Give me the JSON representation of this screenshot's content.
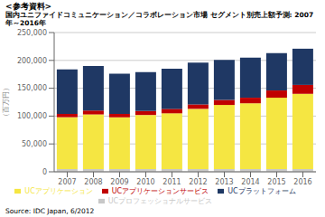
{
  "chart_data": {
    "type": "bar",
    "stacked": true,
    "title": "<参考資料>",
    "subtitle": "国内ユニファイドコミュニケーション／コラボレーション市場 セグメント別売上額予測: 2007年～2016年",
    "categories": [
      "2007",
      "2008",
      "2009",
      "2010",
      "2011",
      "2012",
      "2013",
      "2014",
      "2015",
      "2016"
    ],
    "series": [
      {
        "name": "UCプロフェッショナルサービス",
        "color": "#c8c8c8",
        "values": [
          5000,
          5000,
          5000,
          5000,
          5000,
          5000,
          5000,
          5000,
          5000,
          5000
        ]
      },
      {
        "name": "UCアプリケーション",
        "color": "#f5e642",
        "values": [
          93000,
          98000,
          93000,
          97000,
          100000,
          108000,
          115000,
          118000,
          128000,
          135000
        ]
      },
      {
        "name": "UCアプリケーションサービス",
        "color": "#c00000",
        "values": [
          6000,
          7000,
          6000,
          7000,
          8000,
          8000,
          9000,
          10000,
          13000,
          16000
        ]
      },
      {
        "name": "UCプラットフォーム",
        "color": "#1f3864",
        "values": [
          80000,
          80000,
          72000,
          70000,
          72000,
          75000,
          72000,
          72000,
          67000,
          65000
        ]
      }
    ],
    "ylabel": "（百万円）",
    "ylim": [
      0,
      250000
    ],
    "yticks": [
      0,
      {
        "value": 50000,
        "label": "50,000"
      },
      {
        "value": 100000,
        "label": "100,000"
      },
      {
        "value": 150000,
        "label": "150,000"
      },
      {
        "value": 200000,
        "label": "200,000"
      },
      {
        "value": 250000,
        "label": "250,000"
      }
    ],
    "grid": true,
    "legend": "bottom",
    "annotations": [
      "Source: IDC Japan, 6/2012"
    ]
  }
}
